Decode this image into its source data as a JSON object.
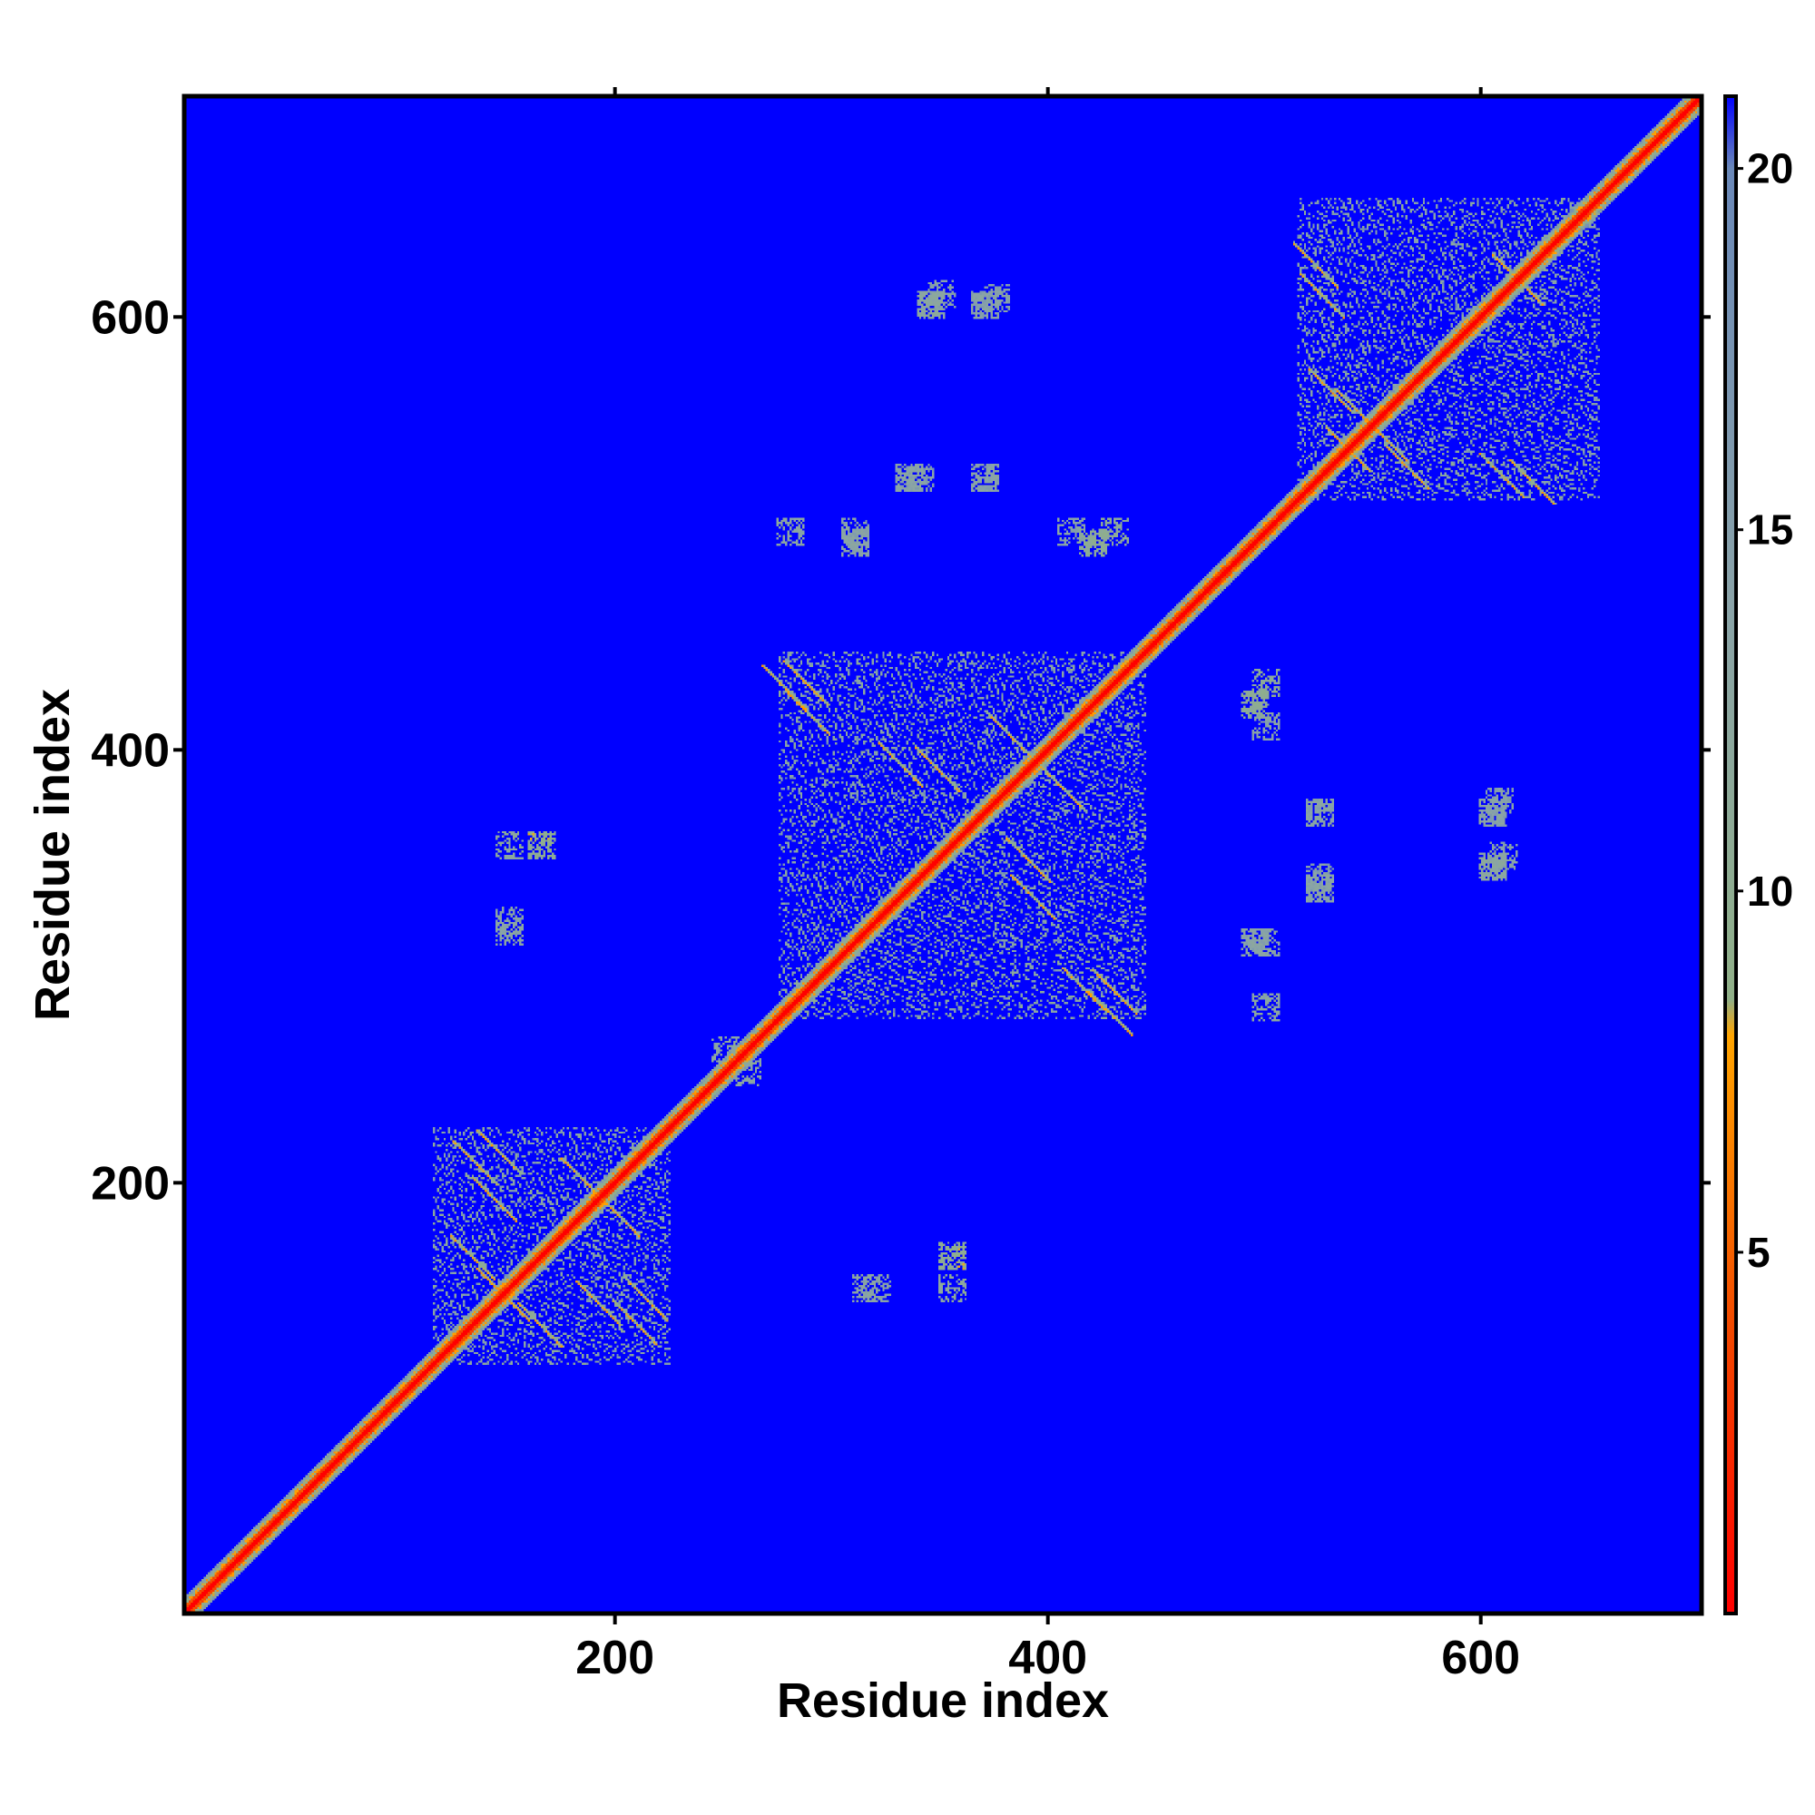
{
  "chart_data": {
    "type": "heatmap",
    "title": "",
    "xlabel": "Residue index",
    "ylabel": "Residue index",
    "xlim": [
      1,
      702
    ],
    "ylim": [
      1,
      702
    ],
    "x_ticks": [
      200,
      400,
      600
    ],
    "y_ticks": [
      200,
      400,
      600
    ],
    "x_tick_labels": [
      "200",
      "400",
      "600"
    ],
    "y_tick_labels": [
      "200",
      "400",
      "600"
    ],
    "matrix_symmetric": true,
    "diagonal_value": 0,
    "colorbar": {
      "range": [
        0,
        21
      ],
      "ticks": [
        5,
        10,
        15,
        20
      ],
      "tick_labels": [
        "5",
        "10",
        "15",
        "20"
      ],
      "stops": [
        {
          "value": 0,
          "color": "#ff0000"
        },
        {
          "value": 4,
          "color": "#f24a00"
        },
        {
          "value": 8,
          "color": "#ffa500"
        },
        {
          "value": 8.5,
          "color": "#90b088"
        },
        {
          "value": 14,
          "color": "#8aa3a8"
        },
        {
          "value": 20,
          "color": "#6a88b8"
        },
        {
          "value": 21,
          "color": "#0000ff"
        }
      ],
      "background_color": "#0000ff"
    },
    "domains": [
      {
        "range": [
          115,
          225
        ],
        "mean_contact_value": 13
      },
      {
        "range": [
          275,
          445
        ],
        "mean_contact_value": 13
      },
      {
        "range": [
          515,
          655
        ],
        "mean_contact_value": 13
      }
    ],
    "secondary_contacts": [
      {
        "x": 315,
        "y": 150,
        "value": 11
      },
      {
        "x": 355,
        "y": 165,
        "value": 9
      },
      {
        "x": 250,
        "y": 260,
        "value": 11
      },
      {
        "x": 150,
        "y": 355,
        "value": 10
      },
      {
        "x": 150,
        "y": 320,
        "value": 12
      },
      {
        "x": 165,
        "y": 355,
        "value": 8
      },
      {
        "x": 495,
        "y": 420,
        "value": 9
      },
      {
        "x": 495,
        "y": 310,
        "value": 12
      },
      {
        "x": 525,
        "y": 370,
        "value": 12
      },
      {
        "x": 525,
        "y": 335,
        "value": 12
      },
      {
        "x": 605,
        "y": 370,
        "value": 12
      },
      {
        "x": 605,
        "y": 345,
        "value": 11
      },
      {
        "x": 420,
        "y": 495,
        "value": 9
      },
      {
        "x": 310,
        "y": 495,
        "value": 12
      },
      {
        "x": 370,
        "y": 525,
        "value": 12
      },
      {
        "x": 335,
        "y": 525,
        "value": 12
      },
      {
        "x": 370,
        "y": 605,
        "value": 12
      },
      {
        "x": 345,
        "y": 605,
        "value": 11
      },
      {
        "x": 280,
        "y": 500,
        "value": 11
      },
      {
        "x": 310,
        "y": 500,
        "value": 12
      },
      {
        "x": 340,
        "y": 525,
        "value": 13
      },
      {
        "x": 350,
        "y": 610,
        "value": 12
      },
      {
        "x": 375,
        "y": 608,
        "value": 13
      },
      {
        "x": 410,
        "y": 500,
        "value": 12
      },
      {
        "x": 430,
        "y": 500,
        "value": 9
      }
    ]
  }
}
